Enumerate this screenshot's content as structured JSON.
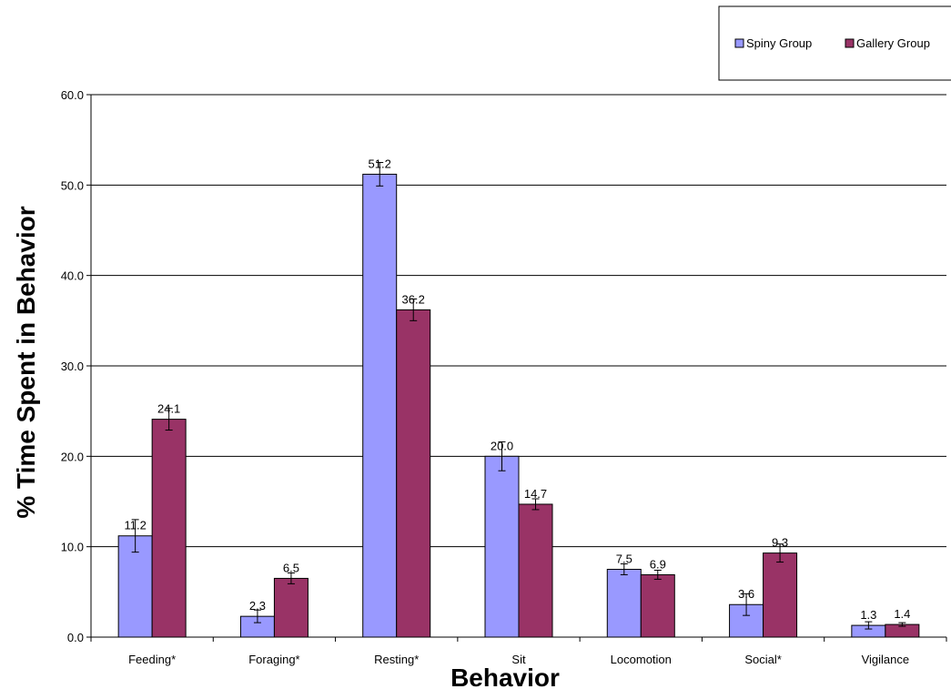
{
  "chart_data": {
    "type": "bar",
    "title": "",
    "xlabel": "Behavior",
    "ylabel": "% Time Spent in Behavior",
    "categories": [
      "Feeding*",
      "Foraging*",
      "Resting*",
      "Sit",
      "Locomotion",
      "Social*",
      "Vigilance"
    ],
    "series": [
      {
        "name": "Spiny Group",
        "color": "#9999ff",
        "values": [
          11.2,
          2.3,
          51.2,
          20.0,
          7.5,
          3.6,
          1.3
        ],
        "labels": [
          "11.2",
          "2.3",
          "51.2",
          "20.0",
          "7.5",
          "3.6",
          "1.3"
        ],
        "error": [
          1.8,
          0.7,
          1.3,
          1.6,
          0.6,
          1.2,
          0.4
        ]
      },
      {
        "name": "Gallery Group",
        "color": "#993366",
        "values": [
          24.1,
          6.5,
          36.2,
          14.7,
          6.9,
          9.3,
          1.4
        ],
        "labels": [
          "24.1",
          "6.5",
          "36.2",
          "14.7",
          "6.9",
          "9.3",
          "1.4"
        ],
        "error": [
          1.2,
          0.6,
          1.2,
          0.6,
          0.5,
          1.0,
          0.2
        ]
      }
    ],
    "ylim": [
      0,
      60
    ],
    "yticks": [
      "0.0",
      "10.0",
      "20.0",
      "30.0",
      "40.0",
      "50.0",
      "60.0"
    ],
    "grid": true,
    "legend_position": "top-right"
  }
}
